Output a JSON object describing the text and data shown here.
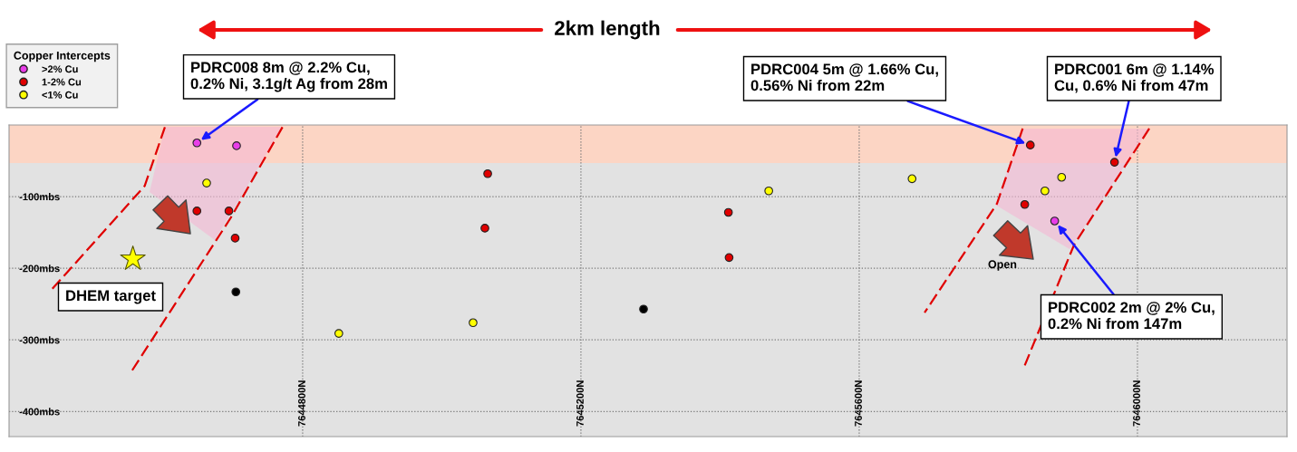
{
  "chart_data": {
    "type": "scatter",
    "title": "2km length",
    "legend_title": "Copper Intercepts",
    "legend": "top left",
    "marker": "circle",
    "grid": true,
    "xlim": [
      7644378,
      7646215
    ],
    "xticks": [
      {
        "value": 7644800,
        "label": "7644800N"
      },
      {
        "value": 7645200,
        "label": "7645200N"
      },
      {
        "value": 7645600,
        "label": "7645600N"
      },
      {
        "value": 7646000,
        "label": "7646000N"
      }
    ],
    "ylim": [
      -435,
      0
    ],
    "yticks": [
      {
        "value": -100,
        "label": "-100mbs"
      },
      {
        "value": -200,
        "label": "-200mbs"
      },
      {
        "value": -300,
        "label": "-300mbs"
      },
      {
        "value": -400,
        "label": "-400mbs"
      }
    ],
    "series": [
      {
        "name": ">2% Cu",
        "color": "#e83ee8",
        "x": [
          7644648,
          7644705,
          7645881
        ],
        "values": [
          -25,
          -29,
          -134
        ]
      },
      {
        "name": "1-2% Cu",
        "color": "#e00000",
        "x": [
          7644648,
          7644694,
          7644703,
          7645066,
          7645062,
          7645412,
          7645413,
          7645846,
          7645838,
          7645967
        ],
        "values": [
          -120,
          -120,
          -158,
          -68,
          -144,
          -122,
          -185,
          -28,
          -111,
          -52
        ]
      },
      {
        "name": "<1% Cu",
        "color": "#ffff00",
        "x": [
          7644662,
          7645470,
          7645676,
          7645891,
          7645867,
          7644852,
          7645045
        ],
        "values": [
          -81,
          -92,
          -75,
          -73,
          -92,
          -291,
          -276
        ]
      },
      {
        "color": "#000000",
        "x": [
          7644704,
          7645290
        ],
        "values": [
          -233,
          -257
        ]
      },
      {
        "color": "#ffff00",
        "marker": "star",
        "x": [
          7644556
        ],
        "values": [
          -187
        ]
      },
      {
        "type": "line",
        "line_style": "dashed",
        "marker": "none",
        "color": "#e00000",
        "x": [
          7644602,
          7644573,
          7644439
        ],
        "values": [
          -3,
          -85,
          -230
        ]
      },
      {
        "type": "line",
        "line_style": "dashed",
        "marker": "none",
        "color": "#e00000",
        "x": [
          7644771,
          7644697,
          7644554
        ],
        "values": [
          -3,
          -129,
          -344
        ]
      },
      {
        "type": "line",
        "line_style": "dashed",
        "marker": "none",
        "color": "#e00000",
        "x": [
          7645835,
          7645798,
          7645694
        ],
        "values": [
          -5,
          -110,
          -262
        ]
      },
      {
        "type": "line",
        "line_style": "dashed",
        "marker": "none",
        "color": "#e00000",
        "x": [
          7646017,
          7645909,
          7645837
        ],
        "values": [
          -5,
          -167,
          -338
        ]
      }
    ],
    "bands": [
      {
        "axis": "y",
        "from": -53,
        "to": 0,
        "color": "#fcd5c4"
      }
    ],
    "annotations": [
      {
        "text": "PDRC008 8m @ 2.2% Cu,\n0.2% Ni, 3.1g/t Ag from 28m",
        "x": 7644648,
        "y": -25
      },
      {
        "text": "PDRC004 5m @ 1.66% Cu,\n0.56% Ni from 22m",
        "x": 7645846,
        "y": -28
      },
      {
        "text": "PDRC001 6m @ 1.14%\nCu, 0.6% Ni from 47m",
        "x": 7645967,
        "y": -52
      },
      {
        "text": "PDRC002 2m @ 2% Cu,\n0.2% Ni from 147m",
        "x": 7645881,
        "y": -134
      },
      {
        "text": "DHEM target",
        "x": 7644556,
        "y": -187
      },
      "Open"
    ]
  }
}
